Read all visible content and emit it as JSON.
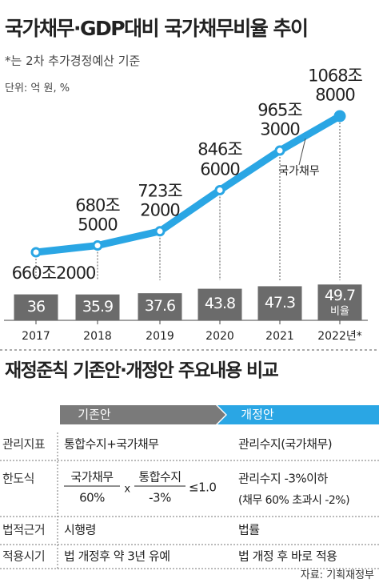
{
  "chart_data": {
    "type": "combo",
    "title": "국가채무·GDP대비 국가채무비율 추이",
    "subtitle": "*는 2차 추가경정예산 기준",
    "unit": "단위: 억 원, %",
    "categories": [
      "2017",
      "2018",
      "2019",
      "2020",
      "2021",
      "2022년*"
    ],
    "series": [
      {
        "name": "국가채무",
        "type": "line",
        "color": "#2aa6e4",
        "values": [
          6602000,
          6805000,
          7232000,
          8466000,
          9653000,
          10688000
        ],
        "value_labels": [
          "660조2000",
          "680조\n5000",
          "723조\n2000",
          "846조\n6000",
          "965조\n3000",
          "1068조\n8000"
        ]
      },
      {
        "name": "비율",
        "type": "bar",
        "color": "#6b6b6b",
        "values": [
          36,
          35.9,
          37.6,
          43.8,
          47.3,
          49.7
        ]
      }
    ]
  },
  "table": {
    "title": "재정준칙 기존안·개정안 주요내용 비교",
    "columns": [
      "기존안",
      "개정안"
    ],
    "rows": [
      {
        "label": "관리지표",
        "before": "통합수지+국가채무",
        "after": [
          "관리수지(국가채무)"
        ]
      },
      {
        "label": "한도식",
        "before": {
          "num1": "국가채무",
          "den1": "60%",
          "op": "x",
          "num2": "통합수지",
          "den2": "-3%",
          "rhs": "≤1.0"
        },
        "after": [
          "관리수지 -3%이하",
          "(채무 60% 초과시 -2%)"
        ]
      },
      {
        "label": "법적근거",
        "before": "시행령",
        "after": [
          "법률"
        ]
      },
      {
        "label": "적용시기",
        "before": "법 개정후 약 3년 유예",
        "after": [
          "법 개정 후 바로 적용"
        ]
      }
    ],
    "source": "자료: 기획재정부"
  }
}
